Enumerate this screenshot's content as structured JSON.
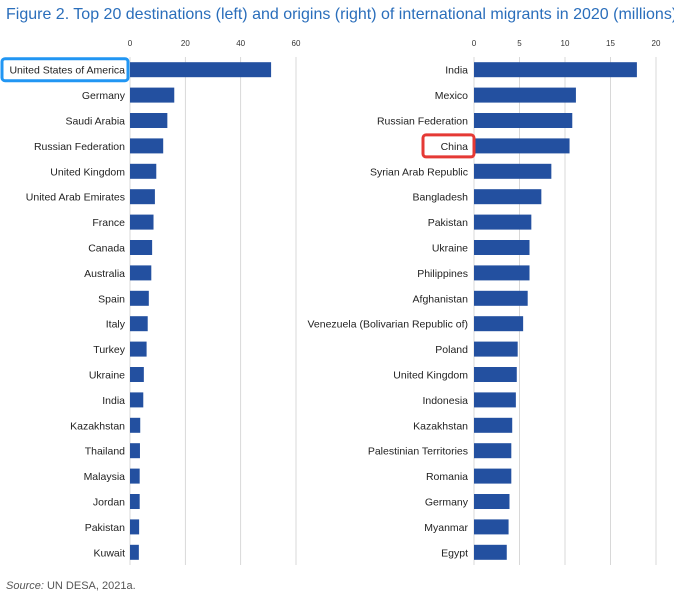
{
  "title": "Figure 2. Top 20 destinations (left) and origins (right) of international migrants in 2020 (millions)",
  "source_label": "Source:",
  "source_text": "UN DESA, 2021a.",
  "colors": {
    "bar": "#2350a0",
    "title": "#2a6ebb",
    "highlight_blue": "#2196f3",
    "highlight_red": "#e53935"
  },
  "highlights": [
    {
      "chart": 0,
      "category": "United States of America",
      "color": "#2196f3"
    },
    {
      "chart": 1,
      "category": "China",
      "color": "#e53935"
    }
  ],
  "chart_data": [
    {
      "type": "bar",
      "orientation": "horizontal",
      "title": "Top 20 destinations of international migrants in 2020 (millions)",
      "xlim": [
        0,
        60
      ],
      "xticks": [
        0,
        20,
        40,
        60
      ],
      "grid": true,
      "categories": [
        "United States of America",
        "Germany",
        "Saudi Arabia",
        "Russian Federation",
        "United Kingdom",
        "United Arab Emirates",
        "France",
        "Canada",
        "Australia",
        "Spain",
        "Italy",
        "Turkey",
        "Ukraine",
        "India",
        "Kazakhstan",
        "Thailand",
        "Malaysia",
        "Jordan",
        "Pakistan",
        "Kuwait"
      ],
      "values": [
        51,
        16,
        13.5,
        12,
        9.5,
        9,
        8.5,
        8,
        7.7,
        6.8,
        6.4,
        6,
        5,
        4.8,
        3.7,
        3.6,
        3.5,
        3.5,
        3.3,
        3.2
      ]
    },
    {
      "type": "bar",
      "orientation": "horizontal",
      "title": "Top 20 origins of international migrants in 2020 (millions)",
      "xlim": [
        0,
        20
      ],
      "xticks": [
        0,
        5,
        10,
        15,
        20
      ],
      "grid": true,
      "categories": [
        "India",
        "Mexico",
        "Russian Federation",
        "China",
        "Syrian Arab Republic",
        "Bangladesh",
        "Pakistan",
        "Ukraine",
        "Philippines",
        "Afghanistan",
        "Venezuela (Bolivarian Republic of)",
        "Poland",
        "United Kingdom",
        "Indonesia",
        "Kazakhstan",
        "Palestinian Territories",
        "Romania",
        "Germany",
        "Myanmar",
        "Egypt"
      ],
      "values": [
        17.9,
        11.2,
        10.8,
        10.5,
        8.5,
        7.4,
        6.3,
        6.1,
        6.1,
        5.9,
        5.4,
        4.8,
        4.7,
        4.6,
        4.2,
        4.1,
        4.1,
        3.9,
        3.8,
        3.6
      ]
    }
  ]
}
